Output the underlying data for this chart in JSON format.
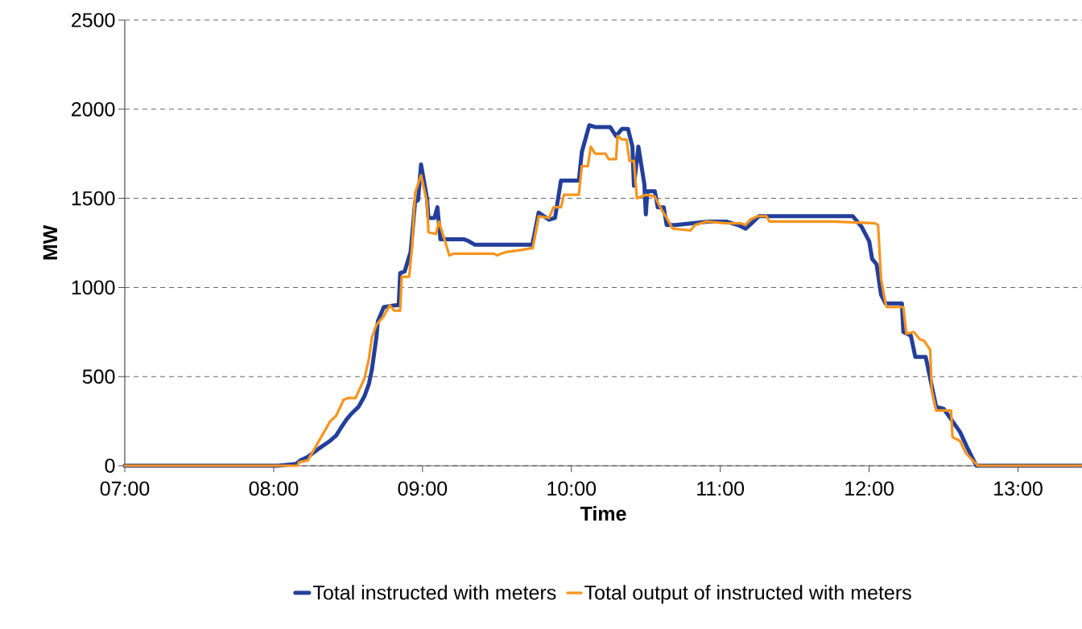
{
  "chart_data": {
    "type": "line",
    "xlabel": "Time",
    "ylabel": "MW",
    "xlim": [
      7,
      13.43
    ],
    "ylim": [
      0,
      2500
    ],
    "xticks": [
      {
        "value": 7,
        "label": "07:00"
      },
      {
        "value": 8,
        "label": "08:00"
      },
      {
        "value": 9,
        "label": "09:00"
      },
      {
        "value": 10,
        "label": "10:00"
      },
      {
        "value": 11,
        "label": "11:00"
      },
      {
        "value": 12,
        "label": "12:00"
      },
      {
        "value": 13,
        "label": "13:00"
      }
    ],
    "yticks": [
      0,
      500,
      1000,
      1500,
      2000,
      2500
    ],
    "grid": "y",
    "legend": "bottom",
    "marker": "none",
    "line_style": "solid",
    "series": [
      {
        "name": "Total instructed with meters",
        "color": "#233f9a",
        "x": [
          7.0,
          8.03,
          8.15,
          8.18,
          8.23,
          8.31,
          8.38,
          8.42,
          8.45,
          8.49,
          8.52,
          8.57,
          8.61,
          8.64,
          8.66,
          8.69,
          8.7,
          8.74,
          8.82,
          8.84,
          8.85,
          8.88,
          8.92,
          8.93,
          8.95,
          8.97,
          8.99,
          9.03,
          9.04,
          9.08,
          9.1,
          9.12,
          9.28,
          9.31,
          9.35,
          9.73,
          9.74,
          9.78,
          9.85,
          9.89,
          9.93,
          10.05,
          10.07,
          10.12,
          10.16,
          10.26,
          10.3,
          10.34,
          10.38,
          10.41,
          10.42,
          10.45,
          10.49,
          10.5,
          10.51,
          10.56,
          10.58,
          10.62,
          10.64,
          10.7,
          10.92,
          11.04,
          11.12,
          11.17,
          11.21,
          11.26,
          11.89,
          11.95,
          12.0,
          12.02,
          12.05,
          12.08,
          12.11,
          12.22,
          12.23,
          12.28,
          12.31,
          12.38,
          12.45,
          12.5,
          12.61,
          12.66,
          12.72,
          13.43
        ],
        "values": [
          0,
          0,
          10,
          30,
          50,
          100,
          140,
          170,
          210,
          260,
          290,
          330,
          390,
          460,
          540,
          720,
          810,
          890,
          900,
          900,
          1080,
          1090,
          1200,
          1290,
          1480,
          1490,
          1690,
          1500,
          1390,
          1390,
          1450,
          1270,
          1270,
          1260,
          1240,
          1240,
          1250,
          1420,
          1380,
          1390,
          1600,
          1600,
          1760,
          1910,
          1900,
          1900,
          1850,
          1890,
          1890,
          1790,
          1570,
          1790,
          1580,
          1410,
          1540,
          1540,
          1450,
          1450,
          1350,
          1350,
          1370,
          1370,
          1350,
          1330,
          1360,
          1400,
          1400,
          1340,
          1260,
          1160,
          1130,
          960,
          910,
          910,
          750,
          730,
          610,
          610,
          330,
          320,
          190,
          100,
          0,
          0
        ]
      },
      {
        "name": "Total output of instructed with meters",
        "color": "#f7941d",
        "x": [
          7.0,
          8.16,
          8.17,
          8.23,
          8.38,
          8.42,
          8.47,
          8.5,
          8.55,
          8.61,
          8.64,
          8.66,
          8.69,
          8.74,
          8.78,
          8.81,
          8.85,
          8.86,
          8.91,
          8.93,
          8.95,
          8.99,
          9.03,
          9.04,
          9.09,
          9.11,
          9.14,
          9.18,
          9.21,
          9.48,
          9.5,
          9.53,
          9.57,
          9.66,
          9.73,
          9.74,
          9.78,
          9.85,
          9.88,
          9.93,
          9.95,
          10.05,
          10.07,
          10.11,
          10.13,
          10.16,
          10.23,
          10.25,
          10.3,
          10.31,
          10.34,
          10.37,
          10.39,
          10.42,
          10.44,
          10.5,
          10.56,
          10.61,
          10.64,
          10.68,
          10.8,
          10.83,
          10.91,
          11.04,
          11.14,
          11.17,
          11.2,
          11.25,
          11.31,
          11.33,
          11.75,
          12.04,
          12.06,
          12.08,
          12.11,
          12.12,
          12.23,
          12.25,
          12.3,
          12.34,
          12.37,
          12.41,
          12.42,
          12.45,
          12.55,
          12.56,
          12.61,
          12.65,
          12.73,
          13.43
        ],
        "values": [
          0,
          0,
          20,
          30,
          250,
          280,
          370,
          380,
          380,
          490,
          600,
          720,
          790,
          840,
          900,
          870,
          870,
          1060,
          1060,
          1230,
          1530,
          1630,
          1480,
          1310,
          1300,
          1370,
          1290,
          1180,
          1190,
          1190,
          1180,
          1190,
          1200,
          1210,
          1220,
          1220,
          1400,
          1390,
          1450,
          1450,
          1520,
          1520,
          1680,
          1680,
          1790,
          1750,
          1750,
          1720,
          1720,
          1850,
          1830,
          1830,
          1710,
          1710,
          1500,
          1520,
          1510,
          1430,
          1390,
          1330,
          1320,
          1350,
          1370,
          1360,
          1360,
          1350,
          1380,
          1400,
          1400,
          1370,
          1370,
          1360,
          1350,
          1050,
          910,
          890,
          890,
          740,
          750,
          710,
          700,
          650,
          430,
          310,
          310,
          160,
          140,
          70,
          0,
          0
        ]
      }
    ]
  }
}
